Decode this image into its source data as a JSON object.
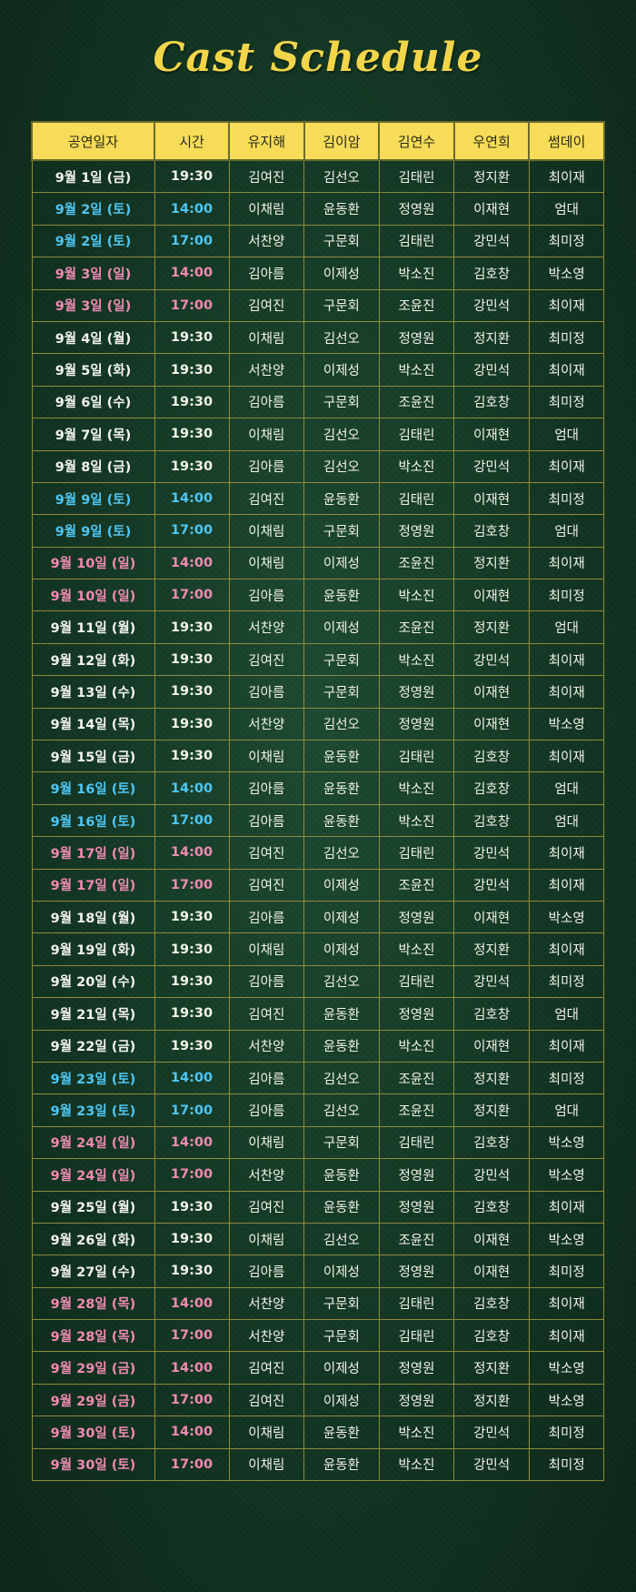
{
  "title": "Cast Schedule",
  "colors": {
    "saturday": "#4fc6f2",
    "sunday": "#ef8bb2",
    "header_bg": "#f6dc58",
    "title": "#f3d54a"
  },
  "headers": [
    "공연일자",
    "시간",
    "유지해",
    "김이암",
    "김연수",
    "우연희",
    "썸데이"
  ],
  "rows": [
    {
      "date": "9월 1일 (금)",
      "time": "19:30",
      "cast": [
        "김여진",
        "김선오",
        "김태린",
        "정지환",
        "최이재"
      ],
      "day": "wd"
    },
    {
      "date": "9월 2일 (토)",
      "time": "14:00",
      "cast": [
        "이채림",
        "윤동환",
        "정영원",
        "이재현",
        "엄대"
      ],
      "day": "sat"
    },
    {
      "date": "9월 2일 (토)",
      "time": "17:00",
      "cast": [
        "서찬양",
        "구문회",
        "김태린",
        "강민석",
        "최미정"
      ],
      "day": "sat"
    },
    {
      "date": "9월 3일 (일)",
      "time": "14:00",
      "cast": [
        "김아름",
        "이제성",
        "박소진",
        "김호창",
        "박소영"
      ],
      "day": "sun"
    },
    {
      "date": "9월 3일 (일)",
      "time": "17:00",
      "cast": [
        "김여진",
        "구문회",
        "조윤진",
        "강민석",
        "최이재"
      ],
      "day": "sun"
    },
    {
      "date": "9월 4일 (월)",
      "time": "19:30",
      "cast": [
        "이채림",
        "김선오",
        "정영원",
        "정지환",
        "최미정"
      ],
      "day": "wd"
    },
    {
      "date": "9월 5일 (화)",
      "time": "19:30",
      "cast": [
        "서찬양",
        "이제성",
        "박소진",
        "강민석",
        "최이재"
      ],
      "day": "wd"
    },
    {
      "date": "9월 6일 (수)",
      "time": "19:30",
      "cast": [
        "김아름",
        "구문회",
        "조윤진",
        "김호창",
        "최미정"
      ],
      "day": "wd"
    },
    {
      "date": "9월 7일 (목)",
      "time": "19:30",
      "cast": [
        "이채림",
        "김선오",
        "김태린",
        "이재현",
        "엄대"
      ],
      "day": "wd"
    },
    {
      "date": "9월 8일 (금)",
      "time": "19:30",
      "cast": [
        "김아름",
        "김선오",
        "박소진",
        "강민석",
        "최이재"
      ],
      "day": "wd"
    },
    {
      "date": "9월 9일 (토)",
      "time": "14:00",
      "cast": [
        "김여진",
        "윤동환",
        "김태린",
        "이재현",
        "최미정"
      ],
      "day": "sat"
    },
    {
      "date": "9월 9일 (토)",
      "time": "17:00",
      "cast": [
        "이채림",
        "구문회",
        "정영원",
        "김호창",
        "엄대"
      ],
      "day": "sat"
    },
    {
      "date": "9월 10일 (일)",
      "time": "14:00",
      "cast": [
        "이채림",
        "이제성",
        "조윤진",
        "정지환",
        "최이재"
      ],
      "day": "sun"
    },
    {
      "date": "9월 10일 (일)",
      "time": "17:00",
      "cast": [
        "김아름",
        "윤동환",
        "박소진",
        "이재현",
        "최미정"
      ],
      "day": "sun"
    },
    {
      "date": "9월 11일 (월)",
      "time": "19:30",
      "cast": [
        "서찬양",
        "이제성",
        "조윤진",
        "정지환",
        "엄대"
      ],
      "day": "wd"
    },
    {
      "date": "9월 12일 (화)",
      "time": "19:30",
      "cast": [
        "김여진",
        "구문회",
        "박소진",
        "강민석",
        "최이재"
      ],
      "day": "wd"
    },
    {
      "date": "9월 13일 (수)",
      "time": "19:30",
      "cast": [
        "김아름",
        "구문회",
        "정영원",
        "이재현",
        "최이재"
      ],
      "day": "wd"
    },
    {
      "date": "9월 14일 (목)",
      "time": "19:30",
      "cast": [
        "서찬양",
        "김선오",
        "정영원",
        "이재현",
        "박소영"
      ],
      "day": "wd"
    },
    {
      "date": "9월 15일 (금)",
      "time": "19:30",
      "cast": [
        "이채림",
        "윤동환",
        "김태린",
        "김호창",
        "최이재"
      ],
      "day": "wd"
    },
    {
      "date": "9월 16일 (토)",
      "time": "14:00",
      "cast": [
        "김아름",
        "윤동환",
        "박소진",
        "김호창",
        "엄대"
      ],
      "day": "sat"
    },
    {
      "date": "9월 16일 (토)",
      "time": "17:00",
      "cast": [
        "김아름",
        "윤동환",
        "박소진",
        "김호창",
        "엄대"
      ],
      "day": "sat"
    },
    {
      "date": "9월 17일 (일)",
      "time": "14:00",
      "cast": [
        "김여진",
        "김선오",
        "김태린",
        "강민석",
        "최이재"
      ],
      "day": "sun"
    },
    {
      "date": "9월 17일 (일)",
      "time": "17:00",
      "cast": [
        "김여진",
        "이제성",
        "조윤진",
        "강민석",
        "최이재"
      ],
      "day": "sun"
    },
    {
      "date": "9월 18일 (월)",
      "time": "19:30",
      "cast": [
        "김아름",
        "이제성",
        "정영원",
        "이재현",
        "박소영"
      ],
      "day": "wd"
    },
    {
      "date": "9월 19일 (화)",
      "time": "19:30",
      "cast": [
        "이채림",
        "이제성",
        "박소진",
        "정지환",
        "최이재"
      ],
      "day": "wd"
    },
    {
      "date": "9월 20일 (수)",
      "time": "19:30",
      "cast": [
        "김아름",
        "김선오",
        "김태린",
        "강민석",
        "최미정"
      ],
      "day": "wd"
    },
    {
      "date": "9월 21일 (목)",
      "time": "19:30",
      "cast": [
        "김여진",
        "윤동환",
        "정영원",
        "김호창",
        "엄대"
      ],
      "day": "wd"
    },
    {
      "date": "9월 22일 (금)",
      "time": "19:30",
      "cast": [
        "서찬양",
        "윤동환",
        "박소진",
        "이재현",
        "최이재"
      ],
      "day": "wd"
    },
    {
      "date": "9월 23일 (토)",
      "time": "14:00",
      "cast": [
        "김아름",
        "김선오",
        "조윤진",
        "정지환",
        "최미정"
      ],
      "day": "sat"
    },
    {
      "date": "9월 23일 (토)",
      "time": "17:00",
      "cast": [
        "김아름",
        "김선오",
        "조윤진",
        "정지환",
        "엄대"
      ],
      "day": "sat"
    },
    {
      "date": "9월 24일 (일)",
      "time": "14:00",
      "cast": [
        "이채림",
        "구문회",
        "김태린",
        "김호창",
        "박소영"
      ],
      "day": "sun"
    },
    {
      "date": "9월 24일 (일)",
      "time": "17:00",
      "cast": [
        "서찬양",
        "윤동환",
        "정영원",
        "강민석",
        "박소영"
      ],
      "day": "sun"
    },
    {
      "date": "9월 25일 (월)",
      "time": "19:30",
      "cast": [
        "김여진",
        "윤동환",
        "정영원",
        "김호창",
        "최이재"
      ],
      "day": "wd"
    },
    {
      "date": "9월 26일 (화)",
      "time": "19:30",
      "cast": [
        "이채림",
        "김선오",
        "조윤진",
        "이재현",
        "박소영"
      ],
      "day": "wd"
    },
    {
      "date": "9월 27일 (수)",
      "time": "19:30",
      "cast": [
        "김아름",
        "이제성",
        "정영원",
        "이재현",
        "최미정"
      ],
      "day": "wd"
    },
    {
      "date": "9월 28일 (목)",
      "time": "14:00",
      "cast": [
        "서찬양",
        "구문회",
        "김태린",
        "김호창",
        "최이재"
      ],
      "day": "sun"
    },
    {
      "date": "9월 28일 (목)",
      "time": "17:00",
      "cast": [
        "서찬양",
        "구문회",
        "김태린",
        "김호창",
        "최이재"
      ],
      "day": "sun"
    },
    {
      "date": "9월 29일 (금)",
      "time": "14:00",
      "cast": [
        "김여진",
        "이제성",
        "정영원",
        "정지환",
        "박소영"
      ],
      "day": "sun"
    },
    {
      "date": "9월 29일 (금)",
      "time": "17:00",
      "cast": [
        "김여진",
        "이제성",
        "정영원",
        "정지환",
        "박소영"
      ],
      "day": "sun"
    },
    {
      "date": "9월 30일 (토)",
      "time": "14:00",
      "cast": [
        "이채림",
        "윤동환",
        "박소진",
        "강민석",
        "최미정"
      ],
      "day": "sun"
    },
    {
      "date": "9월 30일 (토)",
      "time": "17:00",
      "cast": [
        "이채림",
        "윤동환",
        "박소진",
        "강민석",
        "최미정"
      ],
      "day": "sun"
    }
  ]
}
